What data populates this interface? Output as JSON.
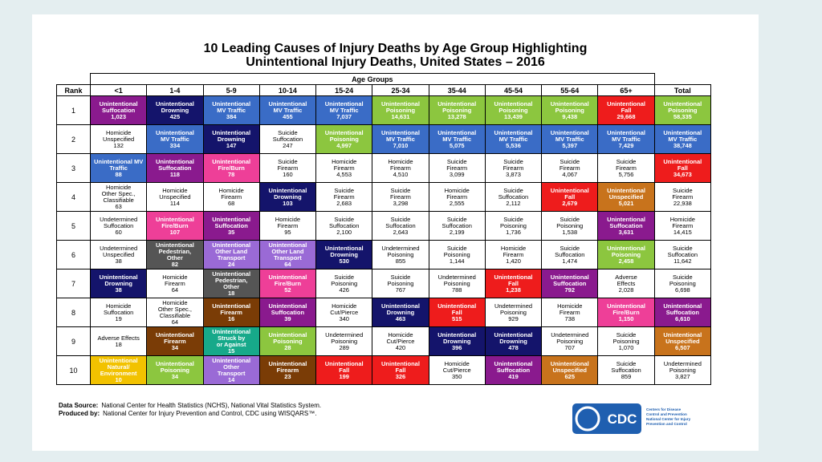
{
  "title": [
    "10 Leading Causes of Injury Deaths by Age Group Highlighting",
    "Unintentional Injury Deaths, United States – 2016"
  ],
  "table": {
    "group_header": "Age Groups",
    "rank_header": "Rank",
    "columns": [
      "<1",
      "1-4",
      "5-9",
      "10-14",
      "15-24",
      "25-34",
      "35-44",
      "45-54",
      "55-64",
      "65+",
      "Total"
    ],
    "rows": [
      {
        "rank": "1",
        "cells": [
          {
            "lines": [
              "Unintentional",
              "Suffocation"
            ],
            "value": "1,023",
            "color": "#8a1a8e"
          },
          {
            "lines": [
              "Unintentional",
              "Drowning"
            ],
            "value": "425",
            "color": "#14146b"
          },
          {
            "lines": [
              "Unintentional",
              "MV Traffic"
            ],
            "value": "384",
            "color": "#3a6cc6"
          },
          {
            "lines": [
              "Unintentional",
              "MV Traffic"
            ],
            "value": "455",
            "color": "#3a6cc6"
          },
          {
            "lines": [
              "Unintentional",
              "MV Traffic"
            ],
            "value": "7,037",
            "color": "#3a6cc6"
          },
          {
            "lines": [
              "Unintentional",
              "Poisoning"
            ],
            "value": "14,631",
            "color": "#8cc63f"
          },
          {
            "lines": [
              "Unintentional",
              "Poisoning"
            ],
            "value": "13,278",
            "color": "#8cc63f"
          },
          {
            "lines": [
              "Unintentional",
              "Poisoning"
            ],
            "value": "13,439",
            "color": "#8cc63f"
          },
          {
            "lines": [
              "Unintentional",
              "Poisoning"
            ],
            "value": "9,438",
            "color": "#8cc63f"
          },
          {
            "lines": [
              "Unintentional",
              "Fall"
            ],
            "value": "29,668",
            "color": "#ee1c1c"
          },
          {
            "lines": [
              "Unintentional",
              "Poisoning"
            ],
            "value": "58,335",
            "color": "#8cc63f"
          }
        ]
      },
      {
        "rank": "2",
        "cells": [
          {
            "lines": [
              "Homicide",
              "Unspecified"
            ],
            "value": "132"
          },
          {
            "lines": [
              "Unintentional",
              "MV Traffic"
            ],
            "value": "334",
            "color": "#3a6cc6"
          },
          {
            "lines": [
              "Unintentional",
              "Drowning"
            ],
            "value": "147",
            "color": "#14146b"
          },
          {
            "lines": [
              "Suicide",
              "Suffocation"
            ],
            "value": "247"
          },
          {
            "lines": [
              "Unintentional",
              "Poisoning"
            ],
            "value": "4,997",
            "color": "#8cc63f"
          },
          {
            "lines": [
              "Unintentional",
              "MV Traffic"
            ],
            "value": "7,010",
            "color": "#3a6cc6"
          },
          {
            "lines": [
              "Unintentional",
              "MV Traffic"
            ],
            "value": "5,075",
            "color": "#3a6cc6"
          },
          {
            "lines": [
              "Unintentional",
              "MV Traffic"
            ],
            "value": "5,536",
            "color": "#3a6cc6"
          },
          {
            "lines": [
              "Unintentional",
              "MV Traffic"
            ],
            "value": "5,397",
            "color": "#3a6cc6"
          },
          {
            "lines": [
              "Unintentional",
              "MV Traffic"
            ],
            "value": "7,429",
            "color": "#3a6cc6"
          },
          {
            "lines": [
              "Unintentional",
              "MV Traffic"
            ],
            "value": "38,748",
            "color": "#3a6cc6"
          }
        ]
      },
      {
        "rank": "3",
        "cells": [
          {
            "lines": [
              "Unintentional MV",
              "Traffic"
            ],
            "value": "88",
            "color": "#3a6cc6"
          },
          {
            "lines": [
              "Unintentional",
              "Suffocation"
            ],
            "value": "118",
            "color": "#8a1a8e"
          },
          {
            "lines": [
              "Unintentional",
              "Fire/Burn"
            ],
            "value": "78",
            "color": "#ee3f98"
          },
          {
            "lines": [
              "Suicide",
              "Firearm"
            ],
            "value": "160"
          },
          {
            "lines": [
              "Homicide",
              "Firearm"
            ],
            "value": "4,553"
          },
          {
            "lines": [
              "Homicide",
              "Firearm"
            ],
            "value": "4,510"
          },
          {
            "lines": [
              "Suicide",
              "Firearm"
            ],
            "value": "3,099"
          },
          {
            "lines": [
              "Suicide",
              "Firearm"
            ],
            "value": "3,873"
          },
          {
            "lines": [
              "Suicide",
              "Firearm"
            ],
            "value": "4,067"
          },
          {
            "lines": [
              "Suicide",
              "Firearm"
            ],
            "value": "5,756"
          },
          {
            "lines": [
              "Unintentional",
              "Fall"
            ],
            "value": "34,673",
            "color": "#ee1c1c"
          }
        ]
      },
      {
        "rank": "4",
        "cells": [
          {
            "lines": [
              "Homicide",
              "Other Spec.,",
              "Classifiable"
            ],
            "value": "63"
          },
          {
            "lines": [
              "Homicide",
              "Unspecified"
            ],
            "value": "114"
          },
          {
            "lines": [
              "Homicide",
              "Firearm"
            ],
            "value": "68"
          },
          {
            "lines": [
              "Unintentional",
              "Drowning"
            ],
            "value": "103",
            "color": "#14146b"
          },
          {
            "lines": [
              "Suicide",
              "Firearm"
            ],
            "value": "2,683"
          },
          {
            "lines": [
              "Suicide",
              "Firearm"
            ],
            "value": "3,298"
          },
          {
            "lines": [
              "Homicide",
              "Firearm"
            ],
            "value": "2,555"
          },
          {
            "lines": [
              "Suicide",
              "Suffocation"
            ],
            "value": "2,112"
          },
          {
            "lines": [
              "Unintentional",
              "Fall"
            ],
            "value": "2,679",
            "color": "#ee1c1c"
          },
          {
            "lines": [
              "Unintentional",
              "Unspecified"
            ],
            "value": "5,021",
            "color": "#c8731c"
          },
          {
            "lines": [
              "Suicide",
              "Firearm"
            ],
            "value": "22,938"
          }
        ]
      },
      {
        "rank": "5",
        "cells": [
          {
            "lines": [
              "Undetermined",
              "Suffocation"
            ],
            "value": "60"
          },
          {
            "lines": [
              "Unintentional",
              "Fire/Burn"
            ],
            "value": "107",
            "color": "#ee3f98"
          },
          {
            "lines": [
              "Unintentional",
              "Suffocation"
            ],
            "value": "35",
            "color": "#8a1a8e"
          },
          {
            "lines": [
              "Homicide",
              "Firearm"
            ],
            "value": "95"
          },
          {
            "lines": [
              "Suicide",
              "Suffocation"
            ],
            "value": "2,100"
          },
          {
            "lines": [
              "Suicide",
              "Suffocation"
            ],
            "value": "2,643"
          },
          {
            "lines": [
              "Suicide",
              "Suffocation"
            ],
            "value": "2,199"
          },
          {
            "lines": [
              "Suicide",
              "Poisoning"
            ],
            "value": "1,736"
          },
          {
            "lines": [
              "Suicide",
              "Poisoning"
            ],
            "value": "1,538"
          },
          {
            "lines": [
              "Unintentional",
              "Suffocation"
            ],
            "value": "3,631",
            "color": "#8a1a8e"
          },
          {
            "lines": [
              "Homicide",
              "Firearm"
            ],
            "value": "14,415"
          }
        ]
      },
      {
        "rank": "6",
        "cells": [
          {
            "lines": [
              "Undetermined",
              "Unspecified"
            ],
            "value": "38"
          },
          {
            "lines": [
              "Unintentional",
              "Pedestrian,",
              "Other"
            ],
            "value": "82",
            "color": "#555555"
          },
          {
            "lines": [
              "Unintentional",
              "Other Land",
              "Transport"
            ],
            "value": "24",
            "color": "#9a6ad6"
          },
          {
            "lines": [
              "Unintentional",
              "Other Land",
              "Transport"
            ],
            "value": "64",
            "color": "#9a6ad6"
          },
          {
            "lines": [
              "Unintentional",
              "Drowning"
            ],
            "value": "530",
            "color": "#14146b"
          },
          {
            "lines": [
              "Undetermined",
              "Poisoning"
            ],
            "value": "855"
          },
          {
            "lines": [
              "Suicide",
              "Poisoning"
            ],
            "value": "1,144"
          },
          {
            "lines": [
              "Homicide",
              "Firearm"
            ],
            "value": "1,420"
          },
          {
            "lines": [
              "Suicide",
              "Suffocation"
            ],
            "value": "1,474"
          },
          {
            "lines": [
              "Unintentional",
              "Poisoning"
            ],
            "value": "2,458",
            "color": "#8cc63f"
          },
          {
            "lines": [
              "Suicide",
              "Suffocation"
            ],
            "value": "11,642"
          }
        ]
      },
      {
        "rank": "7",
        "cells": [
          {
            "lines": [
              "Unintentional",
              "Drowning"
            ],
            "value": "38",
            "color": "#14146b"
          },
          {
            "lines": [
              "Homicide",
              "Firearm"
            ],
            "value": "64"
          },
          {
            "lines": [
              "Unintentional",
              "Pedestrian,",
              "Other"
            ],
            "value": "18",
            "color": "#555555"
          },
          {
            "lines": [
              "Unintentional",
              "Fire/Burn"
            ],
            "value": "52",
            "color": "#ee3f98"
          },
          {
            "lines": [
              "Suicide",
              "Poisoning"
            ],
            "value": "426"
          },
          {
            "lines": [
              "Suicide",
              "Poisoning"
            ],
            "value": "767"
          },
          {
            "lines": [
              "Undetermined",
              "Poisoning"
            ],
            "value": "788"
          },
          {
            "lines": [
              "Unintentional",
              "Fall"
            ],
            "value": "1,238",
            "color": "#ee1c1c"
          },
          {
            "lines": [
              "Unintentional",
              "Suffocation"
            ],
            "value": "792",
            "color": "#8a1a8e"
          },
          {
            "lines": [
              "Adverse",
              "Effects"
            ],
            "value": "2,028"
          },
          {
            "lines": [
              "Suicide",
              "Poisoning"
            ],
            "value": "6,698"
          }
        ]
      },
      {
        "rank": "8",
        "cells": [
          {
            "lines": [
              "Homicide",
              "Suffocation"
            ],
            "value": "19"
          },
          {
            "lines": [
              "Homicide",
              "Other Spec.,",
              "Classifiable"
            ],
            "value": "64"
          },
          {
            "lines": [
              "Unintentional",
              "Firearm"
            ],
            "value": "16",
            "color": "#7a3c06"
          },
          {
            "lines": [
              "Unintentional",
              "Suffocation"
            ],
            "value": "39",
            "color": "#8a1a8e"
          },
          {
            "lines": [
              "Homicide",
              "Cut/Pierce"
            ],
            "value": "340"
          },
          {
            "lines": [
              "Unintentional",
              "Drowning"
            ],
            "value": "463",
            "color": "#14146b"
          },
          {
            "lines": [
              "Unintentional",
              "Fall"
            ],
            "value": "515",
            "color": "#ee1c1c"
          },
          {
            "lines": [
              "Undetermined",
              "Poisoning"
            ],
            "value": "929"
          },
          {
            "lines": [
              "Homicide",
              "Firearm"
            ],
            "value": "738"
          },
          {
            "lines": [
              "Unintentional",
              "Fire/Burn"
            ],
            "value": "1,150",
            "color": "#ee3f98"
          },
          {
            "lines": [
              "Unintentional",
              "Suffocation"
            ],
            "value": "6,610",
            "color": "#8a1a8e"
          }
        ]
      },
      {
        "rank": "9",
        "cells": [
          {
            "lines": [
              "Adverse Effects"
            ],
            "value": "18"
          },
          {
            "lines": [
              "Unintentional",
              "Firearm"
            ],
            "value": "34",
            "color": "#7a3c06"
          },
          {
            "lines": [
              "Unintentional",
              "Struck by",
              "or Against"
            ],
            "value": "15",
            "color": "#17a98a"
          },
          {
            "lines": [
              "Unintentional",
              "Poisoning"
            ],
            "value": "28",
            "color": "#8cc63f"
          },
          {
            "lines": [
              "Undetermined",
              "Poisoning"
            ],
            "value": "289"
          },
          {
            "lines": [
              "Homicide",
              "Cut/Pierce"
            ],
            "value": "420"
          },
          {
            "lines": [
              "Unintentional",
              "Drowning"
            ],
            "value": "396",
            "color": "#14146b"
          },
          {
            "lines": [
              "Unintentional",
              "Drowning"
            ],
            "value": "478",
            "color": "#14146b"
          },
          {
            "lines": [
              "Undetermined",
              "Poisoning"
            ],
            "value": "707"
          },
          {
            "lines": [
              "Suicide",
              "Poisoning"
            ],
            "value": "1,070"
          },
          {
            "lines": [
              "Unintentional",
              "Unspecified"
            ],
            "value": "6,507",
            "color": "#c8731c"
          }
        ]
      },
      {
        "rank": "10",
        "cells": [
          {
            "lines": [
              "Unintentional",
              "Natural/",
              "Environment"
            ],
            "value": "10",
            "color": "#f2c200"
          },
          {
            "lines": [
              "Unintentional",
              "Poisoning"
            ],
            "value": "34",
            "color": "#8cc63f"
          },
          {
            "lines": [
              "Unintentional",
              "Other",
              "Transport"
            ],
            "value": "14",
            "color": "#9a6ad6"
          },
          {
            "lines": [
              "Unintentional",
              "Firearm"
            ],
            "value": "23",
            "color": "#7a3c06"
          },
          {
            "lines": [
              "Unintentional",
              "Fall"
            ],
            "value": "199",
            "color": "#ee1c1c"
          },
          {
            "lines": [
              "Unintentional",
              "Fall"
            ],
            "value": "326",
            "color": "#ee1c1c"
          },
          {
            "lines": [
              "Homicide",
              "Cut/Pierce"
            ],
            "value": "350"
          },
          {
            "lines": [
              "Unintentional",
              "Suffocation"
            ],
            "value": "419",
            "color": "#8a1a8e"
          },
          {
            "lines": [
              "Unintentional",
              "Unspecified"
            ],
            "value": "625",
            "color": "#c8731c"
          },
          {
            "lines": [
              "Suicide",
              "Suffocation"
            ],
            "value": "859"
          },
          {
            "lines": [
              "Undetermined",
              "Poisoning"
            ],
            "value": "3,827"
          }
        ]
      }
    ]
  },
  "footer": [
    {
      "label": "Data Source:",
      "text": "National Center for Health Statistics (NCHS), National Vital Statistics System."
    },
    {
      "label": "Produced by:",
      "text": "National Center for Injury Prevention and Control, CDC using WISQARS™."
    }
  ],
  "logo": {
    "mark": "CDC",
    "text": [
      "Centers for Disease",
      "Control and Prevention",
      "National Center for Injury",
      "Prevention and Control"
    ]
  }
}
